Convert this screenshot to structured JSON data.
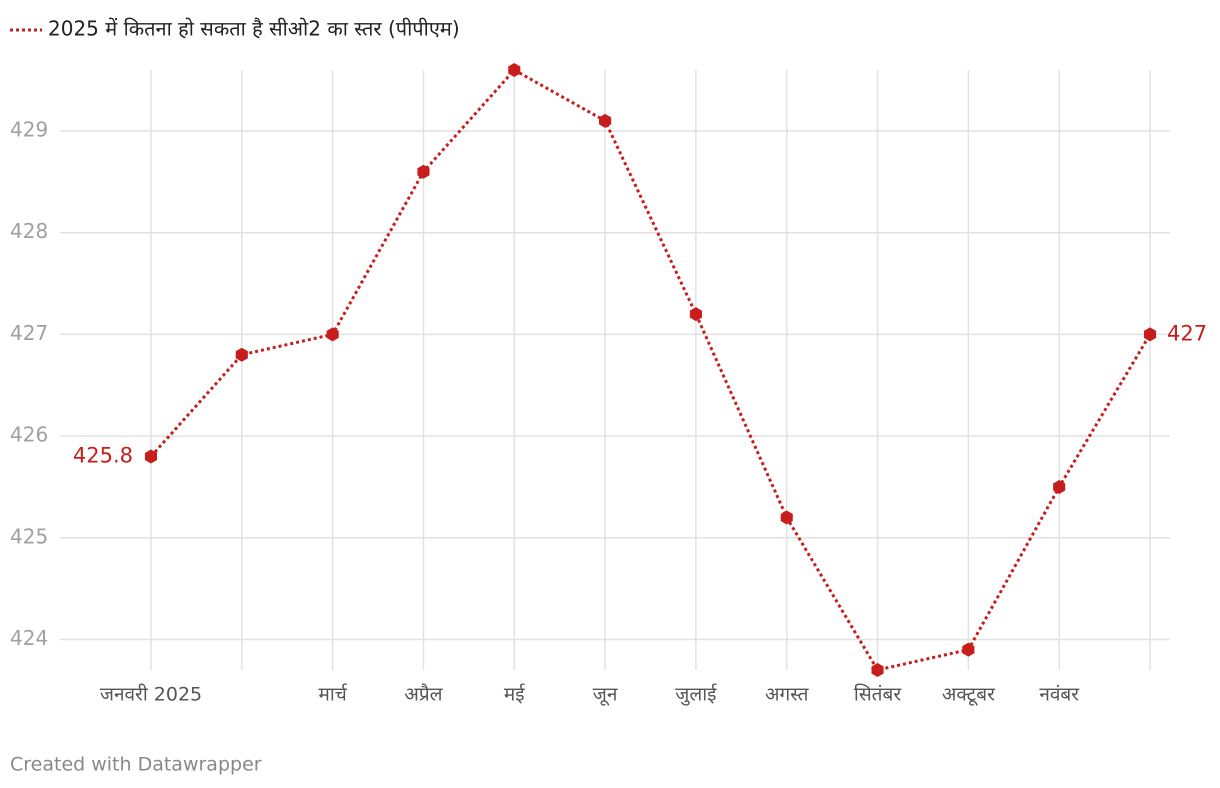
{
  "chart_data": {
    "type": "line",
    "categories": [
      "जनवरी 2025",
      null,
      "मार्च",
      "अप्रैल",
      "मई",
      "जून",
      "जुलाई",
      "अगस्त",
      "सितंबर",
      "अक्टूबर",
      "नवंबर",
      null
    ],
    "series": [
      {
        "name": "2025 में कितना हो सकता है सीओ2 का स्तर (पीपीएम)",
        "color": "#c71e1d",
        "values": [
          425.8,
          426.8,
          427.0,
          428.6,
          429.6,
          429.1,
          427.2,
          425.2,
          423.7,
          423.9,
          425.5,
          427.0
        ],
        "value_labels": [
          "425.8",
          null,
          null,
          null,
          null,
          null,
          null,
          null,
          null,
          null,
          null,
          "427"
        ]
      }
    ],
    "ylim": [
      423.7,
      429.6
    ],
    "yticks": [
      424,
      425,
      426,
      427,
      428,
      429
    ],
    "grid": true,
    "footer": "Created with Datawrapper"
  }
}
